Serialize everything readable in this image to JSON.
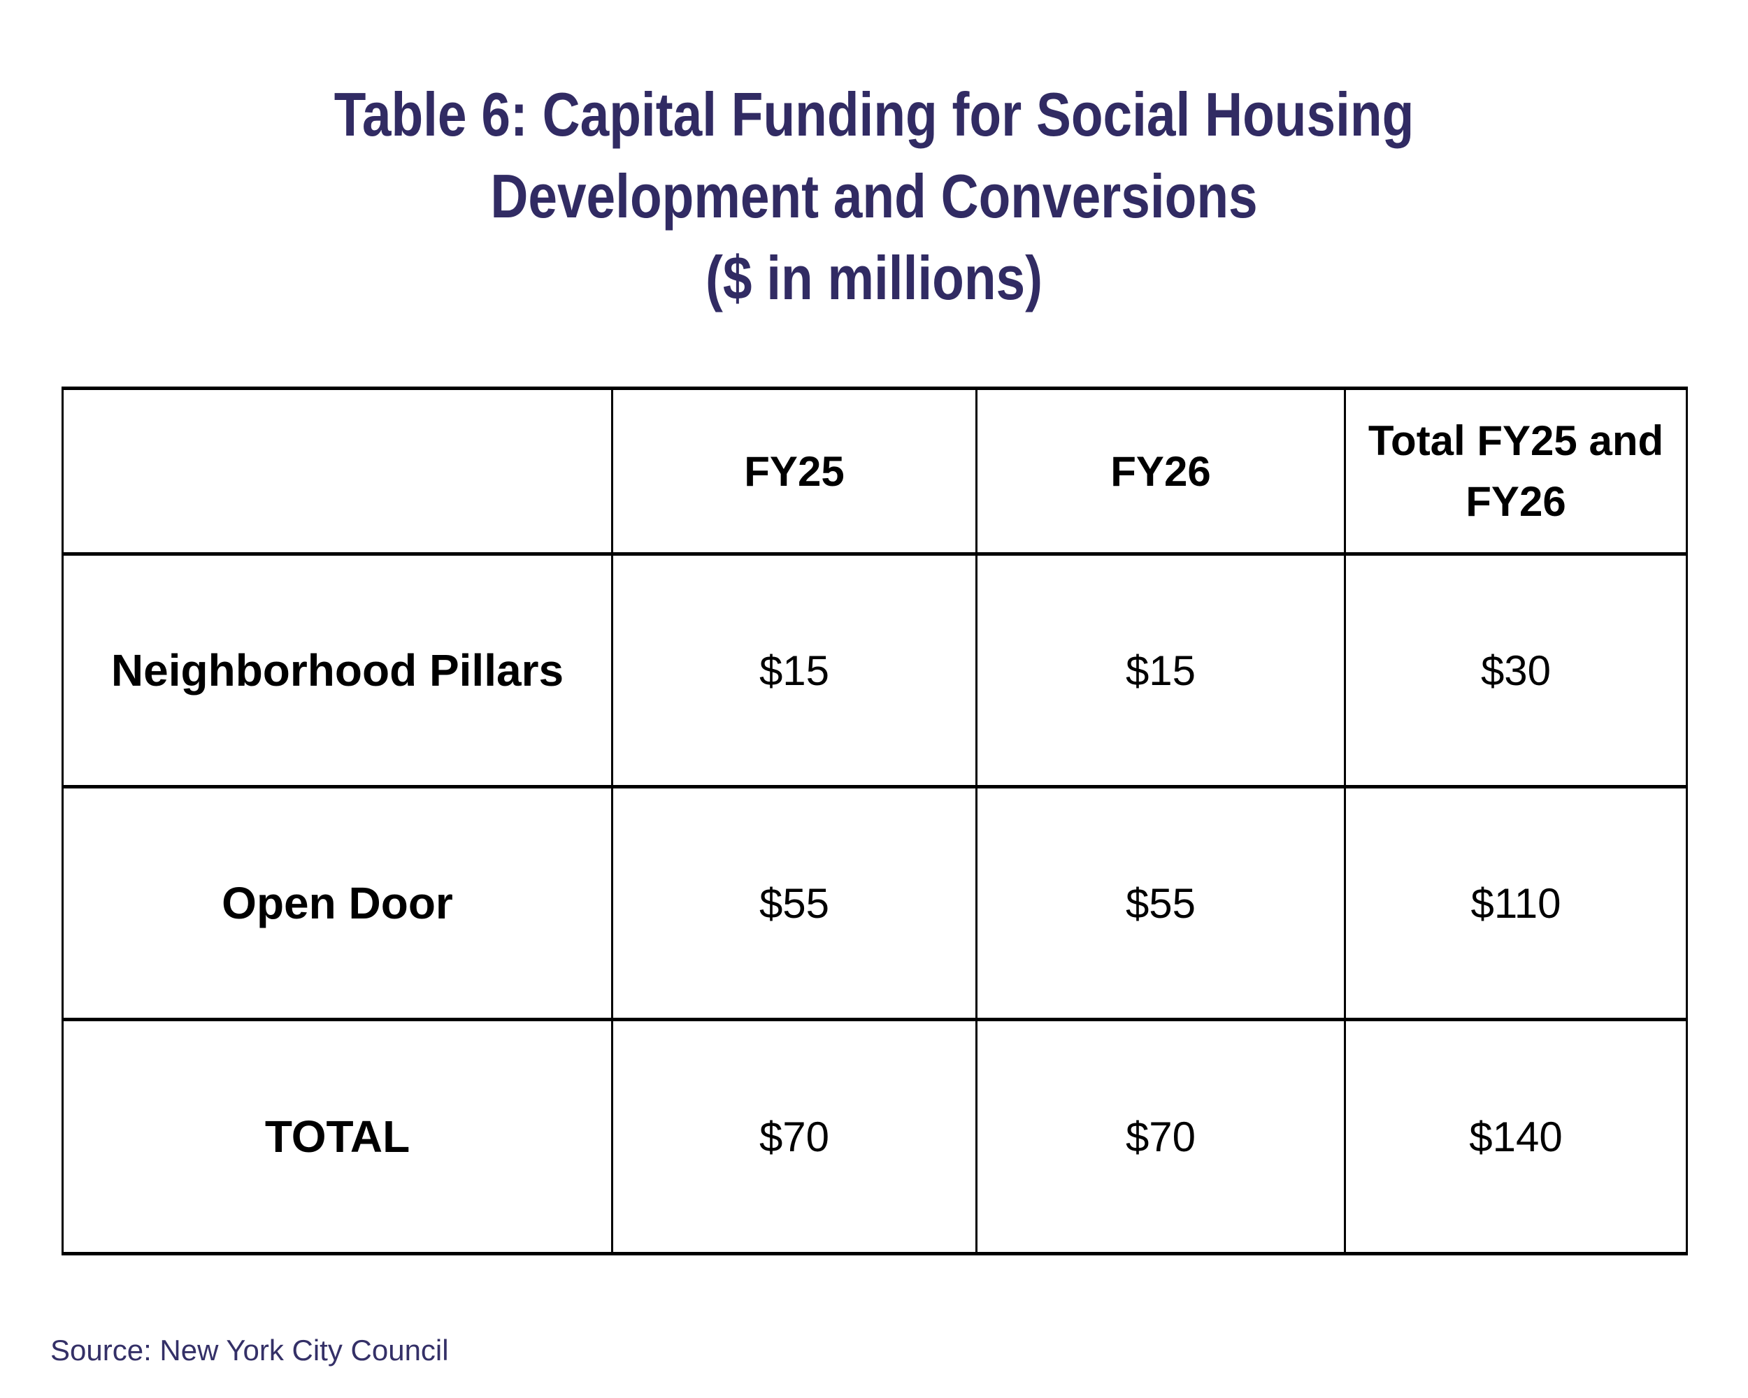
{
  "title": {
    "line1": "Table 6: Capital Funding for Social Housing",
    "line2": "Development and Conversions",
    "line3": "($ in millions)"
  },
  "table": {
    "columns": [
      "",
      "FY25",
      "FY26",
      "Total FY25 and FY26"
    ],
    "rows": [
      {
        "label": "Neighborhood Pillars",
        "fy25": "$15",
        "fy26": "$15",
        "total": "$30"
      },
      {
        "label": "Open Door",
        "fy25": "$55",
        "fy26": "$55",
        "total": "$110"
      },
      {
        "label": "TOTAL",
        "fy25": "$70",
        "fy26": "$70",
        "total": "$140"
      }
    ]
  },
  "source": "Source: New York City Council",
  "colors": {
    "title_text": "#312b63",
    "source_text": "#343067",
    "table_text": "#000000",
    "table_border": "#000000",
    "background": "#ffffff"
  },
  "chart_data": {
    "type": "table",
    "title": "Table 6: Capital Funding for Social Housing Development and Conversions ($ in millions)",
    "categories": [
      "FY25",
      "FY26",
      "Total FY25 and FY26"
    ],
    "series": [
      {
        "name": "Neighborhood Pillars",
        "values": [
          15,
          15,
          30
        ]
      },
      {
        "name": "Open Door",
        "values": [
          55,
          55,
          110
        ]
      },
      {
        "name": "TOTAL",
        "values": [
          70,
          70,
          140
        ]
      }
    ]
  }
}
